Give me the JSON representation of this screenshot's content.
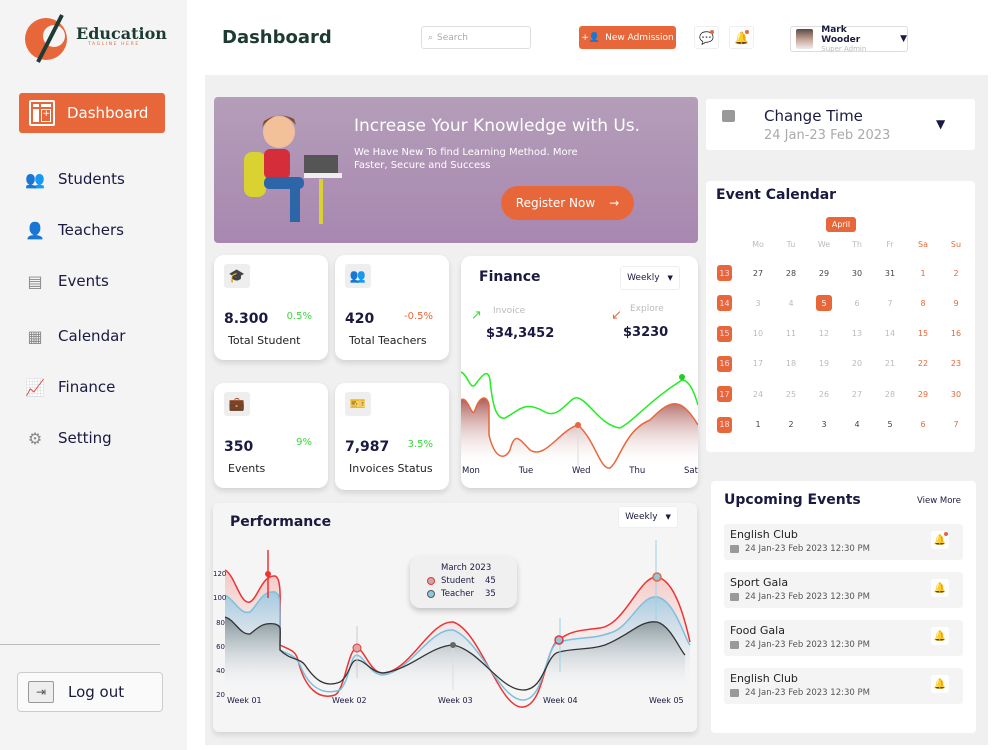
{
  "brand": {
    "name": "Education",
    "tagline": "TAGLINE HERE",
    "accent": "#e8673a"
  },
  "sidebar": {
    "active": "Dashboard",
    "items": [
      {
        "label": "Students",
        "icon": "users-icon"
      },
      {
        "label": "Teachers",
        "icon": "teacher-icon"
      },
      {
        "label": "Events",
        "icon": "events-icon"
      },
      {
        "label": "Calendar",
        "icon": "calendar-icon"
      },
      {
        "label": "Finance",
        "icon": "finance-icon"
      },
      {
        "label": "Setting",
        "icon": "gear-icon"
      }
    ],
    "logout": "Log out"
  },
  "header": {
    "title": "Dashboard",
    "search_placeholder": "Search",
    "new_admission": "New Admission",
    "user": {
      "name": "Mark Wooder",
      "role": "Super Admin"
    }
  },
  "banner": {
    "title": "Increase Your Knowledge with Us.",
    "subtitle": "We Have New To find  Learning Method. More Faster, Secure and Success",
    "cta": "Register Now"
  },
  "stats": [
    {
      "value": "8.300",
      "change": "0.5%",
      "label": "Total Student",
      "trend": "up"
    },
    {
      "value": "420",
      "change": "-0.5%",
      "label": "Total Teachers",
      "trend": "down"
    },
    {
      "value": "350",
      "change": "9%",
      "label": "Events",
      "trend": "up"
    },
    {
      "value": "7,987",
      "change": "3.5%",
      "label": "Invoices Status",
      "trend": "up"
    }
  ],
  "finance": {
    "title": "Finance",
    "period": "Weekly",
    "invoice_label": "Invoice",
    "invoice_value": "$34,3452",
    "explore_label": "Explore",
    "explore_value": "$3230",
    "days": [
      "Mon",
      "Tue",
      "Wed",
      "Thu",
      "Sat"
    ]
  },
  "performance": {
    "title": "Performance",
    "period": "Weekly",
    "y_ticks": [
      "120",
      "100",
      "80",
      "60",
      "40",
      "20"
    ],
    "weeks": [
      "Week 01",
      "Week 02",
      "Week 03",
      "Week 04",
      "Week 05"
    ],
    "tooltip": {
      "title": "March 2023",
      "rows": [
        {
          "label": "Student",
          "value": "45"
        },
        {
          "label": "Teacher",
          "value": "35"
        }
      ]
    }
  },
  "change_time": {
    "label": "Change Time",
    "range": "24 Jan-23 Feb 2023"
  },
  "calendar": {
    "title": "Event Calendar",
    "month": "April",
    "weekdays": [
      "Mo",
      "Tu",
      "We",
      "Th",
      "Fr",
      "Sa",
      "Su"
    ],
    "selected": "5",
    "weeks": [
      {
        "num": "13",
        "days": [
          "27",
          "28",
          "29",
          "30",
          "31",
          "1",
          "2"
        ]
      },
      {
        "num": "14",
        "days": [
          "3",
          "4",
          "5",
          "6",
          "7",
          "8",
          "9"
        ]
      },
      {
        "num": "15",
        "days": [
          "10",
          "11",
          "12",
          "13",
          "14",
          "15",
          "16"
        ]
      },
      {
        "num": "16",
        "days": [
          "17",
          "18",
          "19",
          "20",
          "21",
          "22",
          "23"
        ]
      },
      {
        "num": "17",
        "days": [
          "24",
          "25",
          "26",
          "27",
          "28",
          "29",
          "30"
        ]
      },
      {
        "num": "18",
        "days": [
          "1",
          "2",
          "3",
          "4",
          "5",
          "6",
          "7"
        ]
      }
    ]
  },
  "upcoming": {
    "title": "Upcoming Events",
    "view_more": "View More",
    "events": [
      {
        "name": "English Club",
        "date": "24 Jan-23 Feb 2023  12:30 PM",
        "unread": true
      },
      {
        "name": "Sport Gala",
        "date": "24 Jan-23 Feb 2023  12:30 PM",
        "unread": false
      },
      {
        "name": "Food Gala",
        "date": "24 Jan-23 Feb 2023  12:30 PM",
        "unread": false
      },
      {
        "name": "English Club",
        "date": "24 Jan-23 Feb 2023  12:30 PM",
        "unread": false
      }
    ]
  }
}
